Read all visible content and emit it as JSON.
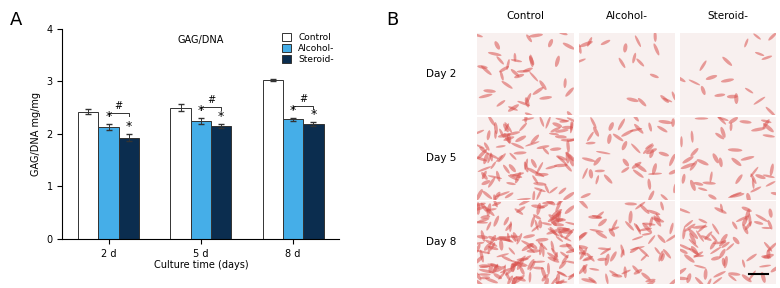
{
  "panels": [
    "A",
    "B"
  ],
  "chart_data": {
    "type": "bar",
    "title": "GAG/DNA",
    "x_label": "Culture time (days)",
    "y_label": "GAG/DNA mg/mg",
    "categories": [
      "2 d",
      "5 d",
      "8 d"
    ],
    "series": [
      {
        "name": "Control",
        "color": "#ffffff",
        "values": [
          2.42,
          2.5,
          3.02
        ],
        "errors": [
          0.05,
          0.06,
          0.02
        ]
      },
      {
        "name": "Alcohol-",
        "color": "#45aee8",
        "values": [
          2.13,
          2.24,
          2.28
        ],
        "errors": [
          0.05,
          0.06,
          0.03
        ]
      },
      {
        "name": "Steroid-",
        "color": "#0b2d4f",
        "values": [
          1.93,
          2.15,
          2.19
        ],
        "errors": [
          0.06,
          0.04,
          0.04
        ]
      }
    ],
    "annotations": [
      {
        "text": "*",
        "series": "Alcohol-"
      },
      {
        "text": "*",
        "series": "Steroid-"
      },
      {
        "text": "#",
        "series_pair": [
          "Alcohol-",
          "Steroid-"
        ]
      }
    ],
    "ylim": [
      0,
      4
    ],
    "yticks": [
      0,
      1,
      2,
      3,
      4
    ],
    "legend": "upper right"
  },
  "image_grid": {
    "columns": [
      "Control",
      "Alcohol-",
      "Steroid-"
    ],
    "rows": [
      "Day 2",
      "Day 5",
      "Day 8"
    ]
  }
}
